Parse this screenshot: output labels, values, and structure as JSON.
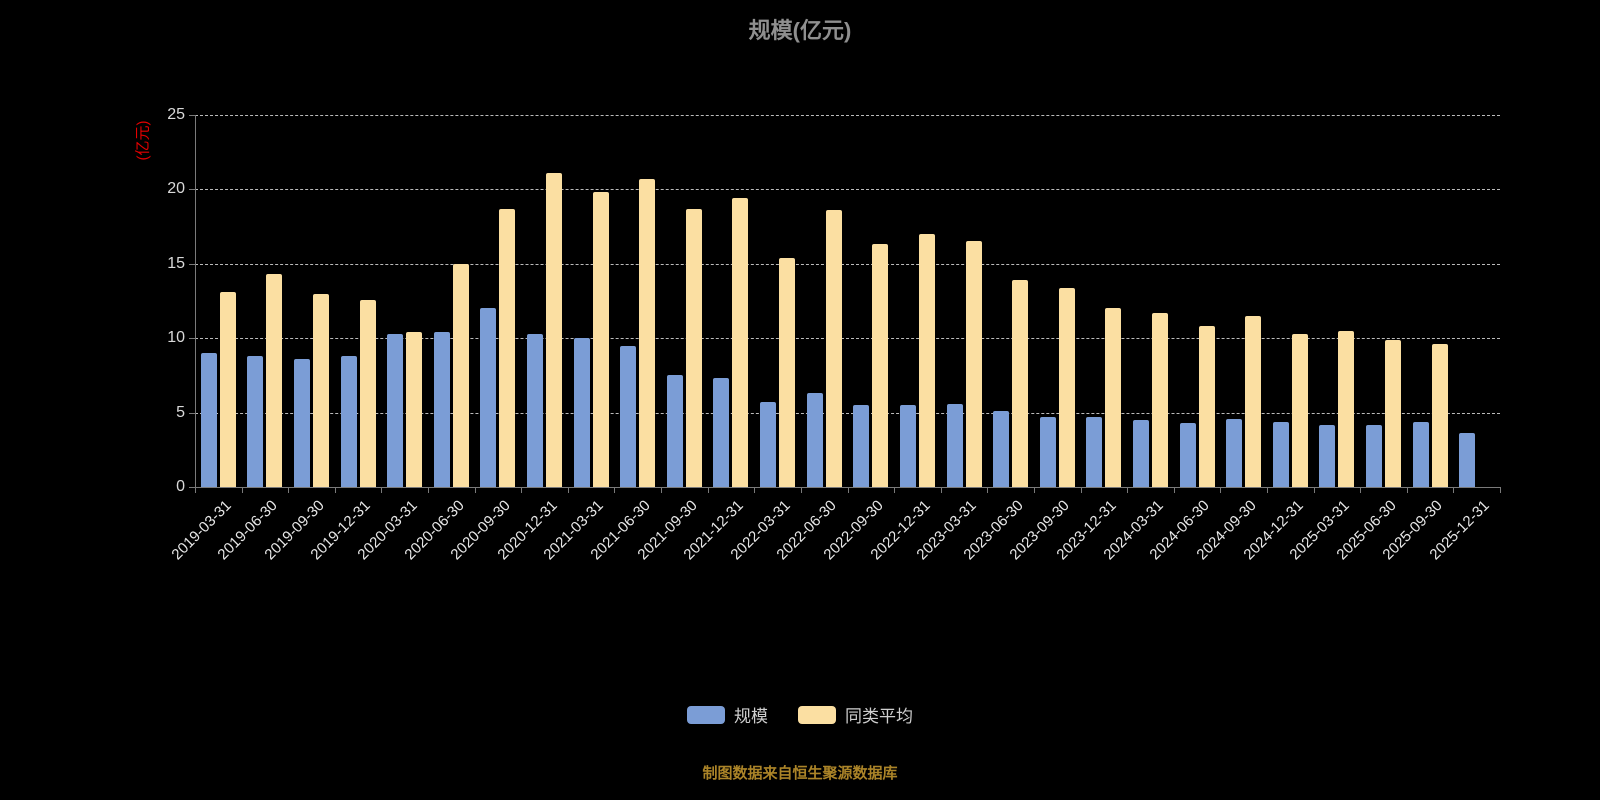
{
  "title": "规模(亿元)",
  "y_axis_unit": "(亿元)",
  "source_note": "制图数据来自恒生聚源数据库",
  "chart_data": {
    "type": "bar",
    "title": "规模(亿元)",
    "ylabel": "(亿元)",
    "ylim": [
      0,
      25
    ],
    "yticks": [
      0,
      5,
      10,
      15,
      20,
      25
    ],
    "grid": "dashed-horizontal",
    "legend_position": "bottom",
    "categories": [
      "2019-03-31",
      "2019-06-30",
      "2019-09-30",
      "2019-12-31",
      "2020-03-31",
      "2020-06-30",
      "2020-09-30",
      "2020-12-31",
      "2021-03-31",
      "2021-06-30",
      "2021-09-30",
      "2021-12-31",
      "2022-03-31",
      "2022-06-30",
      "2022-09-30",
      "2022-12-31",
      "2023-03-31",
      "2023-06-30",
      "2023-09-30",
      "2023-12-31",
      "2024-03-31",
      "2024-06-30",
      "2024-09-30",
      "2024-12-31",
      "2025-03-31",
      "2025-06-30",
      "2025-09-30",
      "2025-12-31"
    ],
    "series": [
      {
        "name": "规模",
        "color": "#7B9DD6",
        "values": [
          9.0,
          8.8,
          8.6,
          8.8,
          10.3,
          10.4,
          12.0,
          10.3,
          10.0,
          9.5,
          7.5,
          7.3,
          5.7,
          6.3,
          5.5,
          5.5,
          5.6,
          5.1,
          4.7,
          4.7,
          4.5,
          4.3,
          4.6,
          4.4,
          4.2,
          4.2,
          4.4,
          3.6
        ]
      },
      {
        "name": "同类平均",
        "color": "#FBDFA2",
        "values": [
          13.1,
          14.3,
          13.0,
          12.6,
          10.4,
          15.0,
          18.7,
          21.1,
          19.8,
          20.7,
          18.7,
          19.4,
          15.4,
          18.6,
          16.3,
          17.0,
          16.5,
          13.9,
          13.4,
          12.0,
          11.7,
          10.8,
          11.5,
          10.3,
          10.5,
          9.9,
          9.6,
          null
        ]
      }
    ]
  }
}
